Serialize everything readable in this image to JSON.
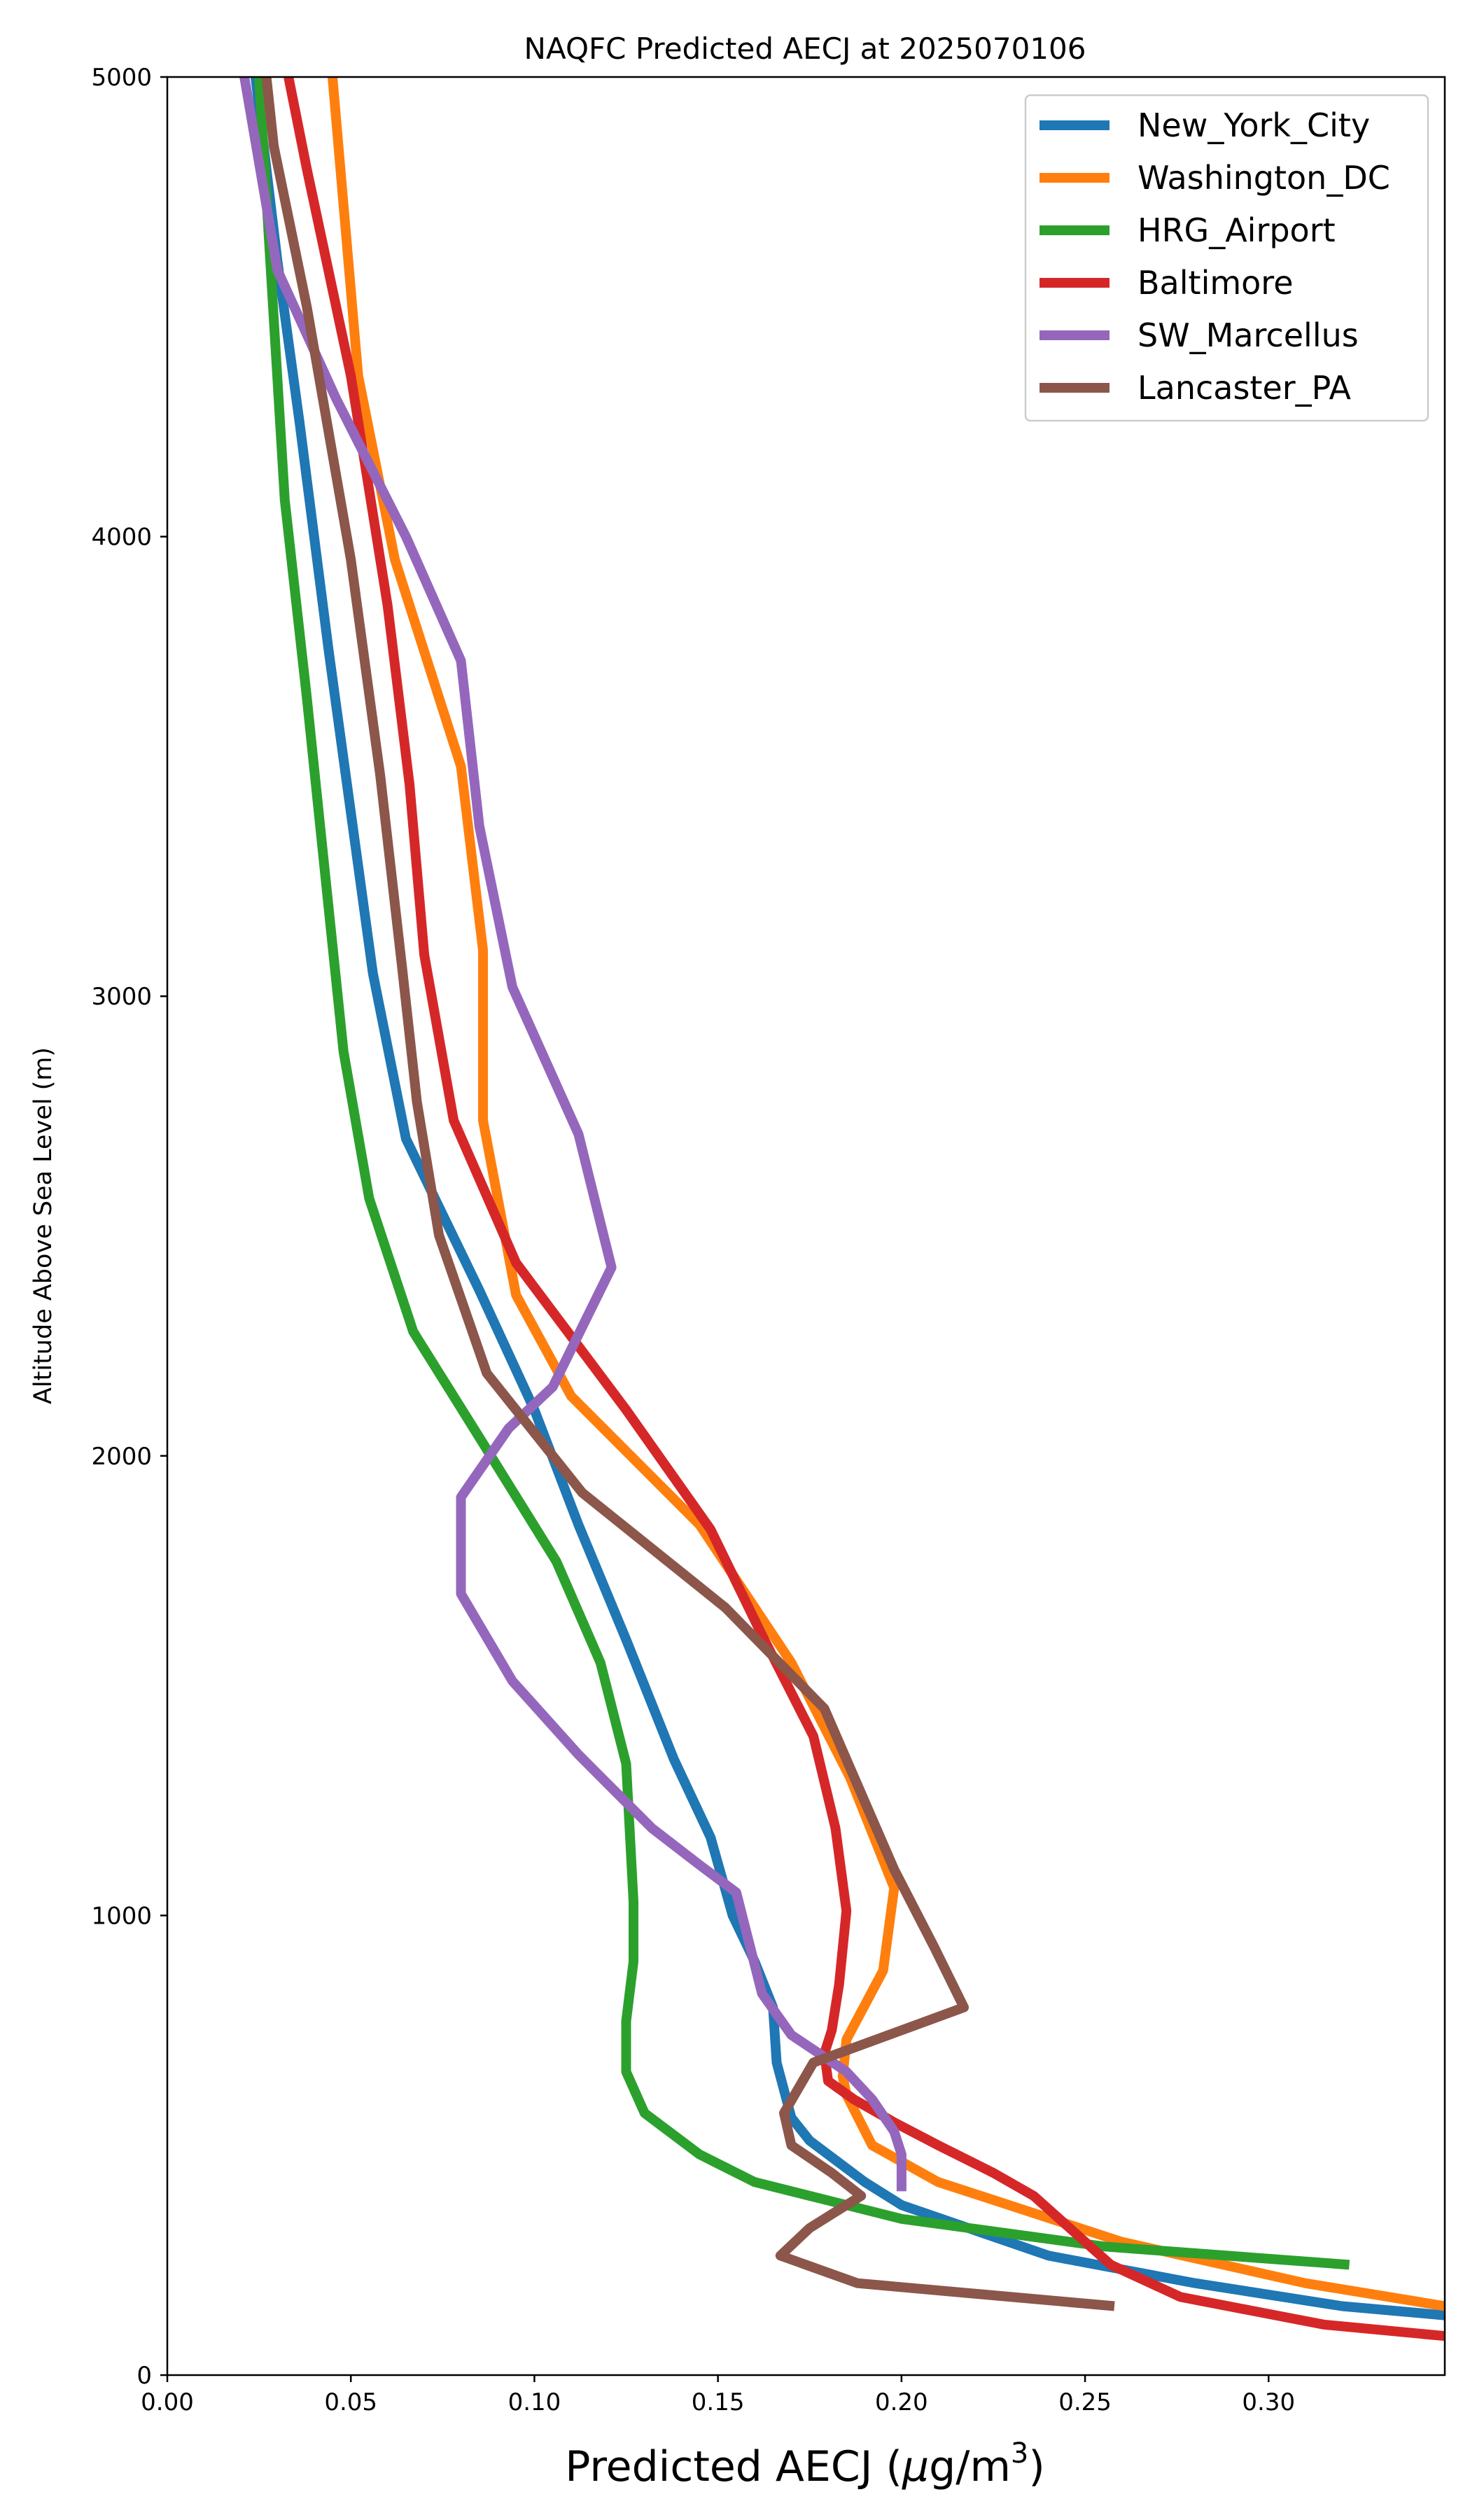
{
  "chart_data": {
    "type": "line",
    "title": "NAQFC Predicted AECJ at 2025070106",
    "xlabel_prefix": "Predicted AECJ (",
    "xlabel_mu": "μ",
    "xlabel_units": "g/m",
    "xlabel_sup": "3",
    "xlabel_suffix": ")",
    "ylabel": "Altitude Above Sea Level (m)",
    "xlim": [
      0.0,
      0.348
    ],
    "ylim": [
      0,
      5000
    ],
    "xticks": [
      0.0,
      0.05,
      0.1,
      0.15,
      0.2,
      0.25,
      0.3
    ],
    "xtick_labels": [
      "0.00",
      "0.05",
      "0.10",
      "0.15",
      "0.20",
      "0.25",
      "0.30"
    ],
    "yticks": [
      0,
      1000,
      2000,
      3000,
      4000,
      5000
    ],
    "ytick_labels": [
      "0",
      "1000",
      "2000",
      "3000",
      "4000",
      "5000"
    ],
    "grid": false,
    "legend_position": "top-right",
    "series": [
      {
        "name": "New_York_City",
        "color": "#1f77b4",
        "points": [
          [
            0.348,
            130
          ],
          [
            0.32,
            150
          ],
          [
            0.28,
            200
          ],
          [
            0.24,
            260
          ],
          [
            0.2,
            370
          ],
          [
            0.19,
            420
          ],
          [
            0.175,
            510
          ],
          [
            0.17,
            560
          ],
          [
            0.166,
            680
          ],
          [
            0.165,
            800
          ],
          [
            0.16,
            900
          ],
          [
            0.154,
            1000
          ],
          [
            0.148,
            1170
          ],
          [
            0.138,
            1340
          ],
          [
            0.125,
            1600
          ],
          [
            0.112,
            1850
          ],
          [
            0.1,
            2100
          ],
          [
            0.085,
            2360
          ],
          [
            0.065,
            2690
          ],
          [
            0.056,
            3050
          ],
          [
            0.05,
            3400
          ],
          [
            0.044,
            3750
          ],
          [
            0.036,
            4250
          ],
          [
            0.03,
            4600
          ],
          [
            0.024,
            5000
          ]
        ]
      },
      {
        "name": "Washington_DC",
        "color": "#ff7f0e",
        "points": [
          [
            0.348,
            150
          ],
          [
            0.31,
            200
          ],
          [
            0.26,
            290
          ],
          [
            0.21,
            420
          ],
          [
            0.192,
            500
          ],
          [
            0.185,
            610
          ],
          [
            0.184,
            650
          ],
          [
            0.185,
            730
          ],
          [
            0.195,
            880
          ],
          [
            0.198,
            1060
          ],
          [
            0.186,
            1300
          ],
          [
            0.17,
            1550
          ],
          [
            0.145,
            1850
          ],
          [
            0.11,
            2130
          ],
          [
            0.095,
            2350
          ],
          [
            0.086,
            2730
          ],
          [
            0.086,
            3100
          ],
          [
            0.08,
            3500
          ],
          [
            0.062,
            3950
          ],
          [
            0.052,
            4350
          ],
          [
            0.045,
            5000
          ]
        ]
      },
      {
        "name": "HRG_Airport",
        "color": "#2ca02c",
        "points": [
          [
            0.322,
            240
          ],
          [
            0.255,
            280
          ],
          [
            0.2,
            340
          ],
          [
            0.18,
            380
          ],
          [
            0.16,
            420
          ],
          [
            0.145,
            480
          ],
          [
            0.13,
            570
          ],
          [
            0.125,
            660
          ],
          [
            0.125,
            770
          ],
          [
            0.127,
            900
          ],
          [
            0.127,
            1030
          ],
          [
            0.125,
            1330
          ],
          [
            0.118,
            1550
          ],
          [
            0.106,
            1770
          ],
          [
            0.085,
            2040
          ],
          [
            0.067,
            2270
          ],
          [
            0.055,
            2560
          ],
          [
            0.048,
            2880
          ],
          [
            0.038,
            3650
          ],
          [
            0.032,
            4080
          ],
          [
            0.025,
            5000
          ]
        ]
      },
      {
        "name": "Baltimore",
        "color": "#d62728",
        "points": [
          [
            0.348,
            85
          ],
          [
            0.315,
            110
          ],
          [
            0.276,
            170
          ],
          [
            0.257,
            240
          ],
          [
            0.236,
            390
          ],
          [
            0.225,
            440
          ],
          [
            0.21,
            500
          ],
          [
            0.198,
            550
          ],
          [
            0.187,
            600
          ],
          [
            0.18,
            640
          ],
          [
            0.179,
            700
          ],
          [
            0.181,
            750
          ],
          [
            0.183,
            850
          ],
          [
            0.185,
            1010
          ],
          [
            0.182,
            1190
          ],
          [
            0.176,
            1390
          ],
          [
            0.162,
            1610
          ],
          [
            0.148,
            1840
          ],
          [
            0.125,
            2100
          ],
          [
            0.095,
            2420
          ],
          [
            0.078,
            2730
          ],
          [
            0.07,
            3090
          ],
          [
            0.066,
            3460
          ],
          [
            0.06,
            3850
          ],
          [
            0.05,
            4350
          ],
          [
            0.038,
            4800
          ],
          [
            0.033,
            5000
          ]
        ]
      },
      {
        "name": "SW_Marcellus",
        "color": "#9467bd",
        "points": [
          [
            0.2,
            400
          ],
          [
            0.2,
            480
          ],
          [
            0.198,
            530
          ],
          [
            0.192,
            600
          ],
          [
            0.185,
            660
          ],
          [
            0.17,
            740
          ],
          [
            0.162,
            830
          ],
          [
            0.155,
            1050
          ],
          [
            0.145,
            1110
          ],
          [
            0.132,
            1190
          ],
          [
            0.112,
            1350
          ],
          [
            0.094,
            1510
          ],
          [
            0.08,
            1700
          ],
          [
            0.08,
            1910
          ],
          [
            0.093,
            2060
          ],
          [
            0.105,
            2150
          ],
          [
            0.121,
            2410
          ],
          [
            0.112,
            2700
          ],
          [
            0.094,
            3020
          ],
          [
            0.085,
            3370
          ],
          [
            0.08,
            3730
          ],
          [
            0.065,
            4000
          ],
          [
            0.046,
            4300
          ],
          [
            0.03,
            4580
          ],
          [
            0.021,
            5000
          ]
        ]
      },
      {
        "name": "Lancaster_PA",
        "color": "#8c564b",
        "points": [
          [
            0.258,
            150
          ],
          [
            0.188,
            200
          ],
          [
            0.167,
            260
          ],
          [
            0.175,
            320
          ],
          [
            0.189,
            390
          ],
          [
            0.181,
            440
          ],
          [
            0.17,
            500
          ],
          [
            0.168,
            570
          ],
          [
            0.176,
            680
          ],
          [
            0.217,
            800
          ],
          [
            0.209,
            930
          ],
          [
            0.198,
            1100
          ],
          [
            0.179,
            1450
          ],
          [
            0.152,
            1670
          ],
          [
            0.113,
            1920
          ],
          [
            0.087,
            2180
          ],
          [
            0.074,
            2480
          ],
          [
            0.068,
            2770
          ],
          [
            0.064,
            3060
          ],
          [
            0.058,
            3480
          ],
          [
            0.05,
            3950
          ],
          [
            0.038,
            4500
          ],
          [
            0.029,
            4850
          ],
          [
            0.027,
            5000
          ]
        ]
      }
    ]
  }
}
